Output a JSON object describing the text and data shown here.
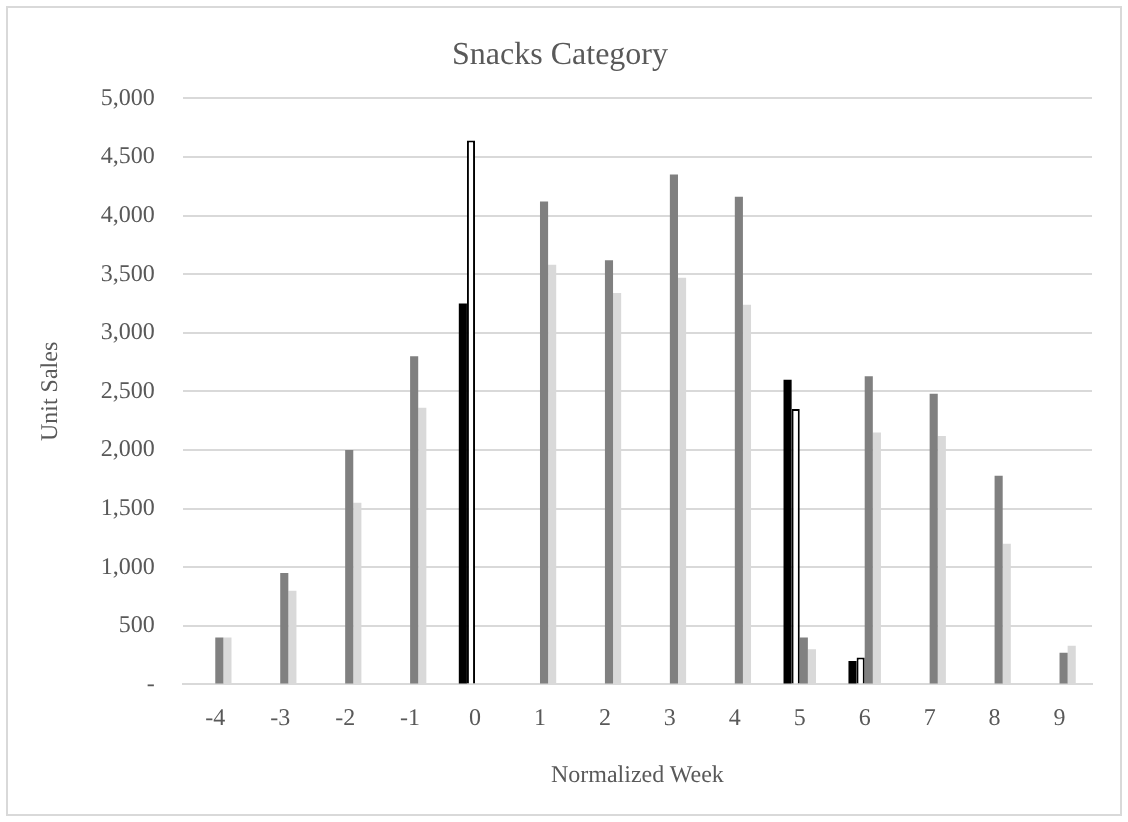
{
  "chart_data": {
    "type": "bar",
    "title": "Snacks Category",
    "xlabel": "Normalized Week",
    "ylabel": "Unit Sales",
    "categories": [
      "-4",
      "-3",
      "-2",
      "-1",
      "0",
      "1",
      "2",
      "3",
      "4",
      "5",
      "6",
      "7",
      "8",
      "9"
    ],
    "series": [
      {
        "color": "#000000",
        "values": [
          null,
          null,
          null,
          null,
          3250,
          null,
          null,
          null,
          null,
          2600,
          200,
          null,
          null,
          null
        ]
      },
      {
        "color": "#ffffff",
        "values": [
          null,
          null,
          null,
          null,
          4640,
          null,
          null,
          null,
          null,
          2350,
          230,
          null,
          null,
          null
        ]
      },
      {
        "color": "#808080",
        "values": [
          400,
          950,
          2000,
          2800,
          null,
          4120,
          3620,
          4350,
          4160,
          400,
          2630,
          2480,
          1780,
          270
        ]
      },
      {
        "color": "#d9d9d9",
        "values": [
          400,
          800,
          1550,
          2360,
          null,
          3580,
          3340,
          3470,
          3240,
          300,
          2150,
          2120,
          1200,
          330
        ]
      }
    ],
    "ylim": [
      0,
      5000
    ],
    "yticks": [
      {
        "value": 0,
        "label": "-"
      },
      {
        "value": 500,
        "label": "500"
      },
      {
        "value": 1000,
        "label": "1,000"
      },
      {
        "value": 1500,
        "label": "1,500"
      },
      {
        "value": 2000,
        "label": "2,000"
      },
      {
        "value": 2500,
        "label": "2,500"
      },
      {
        "value": 3000,
        "label": "3,000"
      },
      {
        "value": 3500,
        "label": "3,500"
      },
      {
        "value": 4000,
        "label": "4,000"
      },
      {
        "value": 4500,
        "label": "4,500"
      },
      {
        "value": 5000,
        "label": "5,000"
      }
    ],
    "grid": "y",
    "legend": false
  }
}
